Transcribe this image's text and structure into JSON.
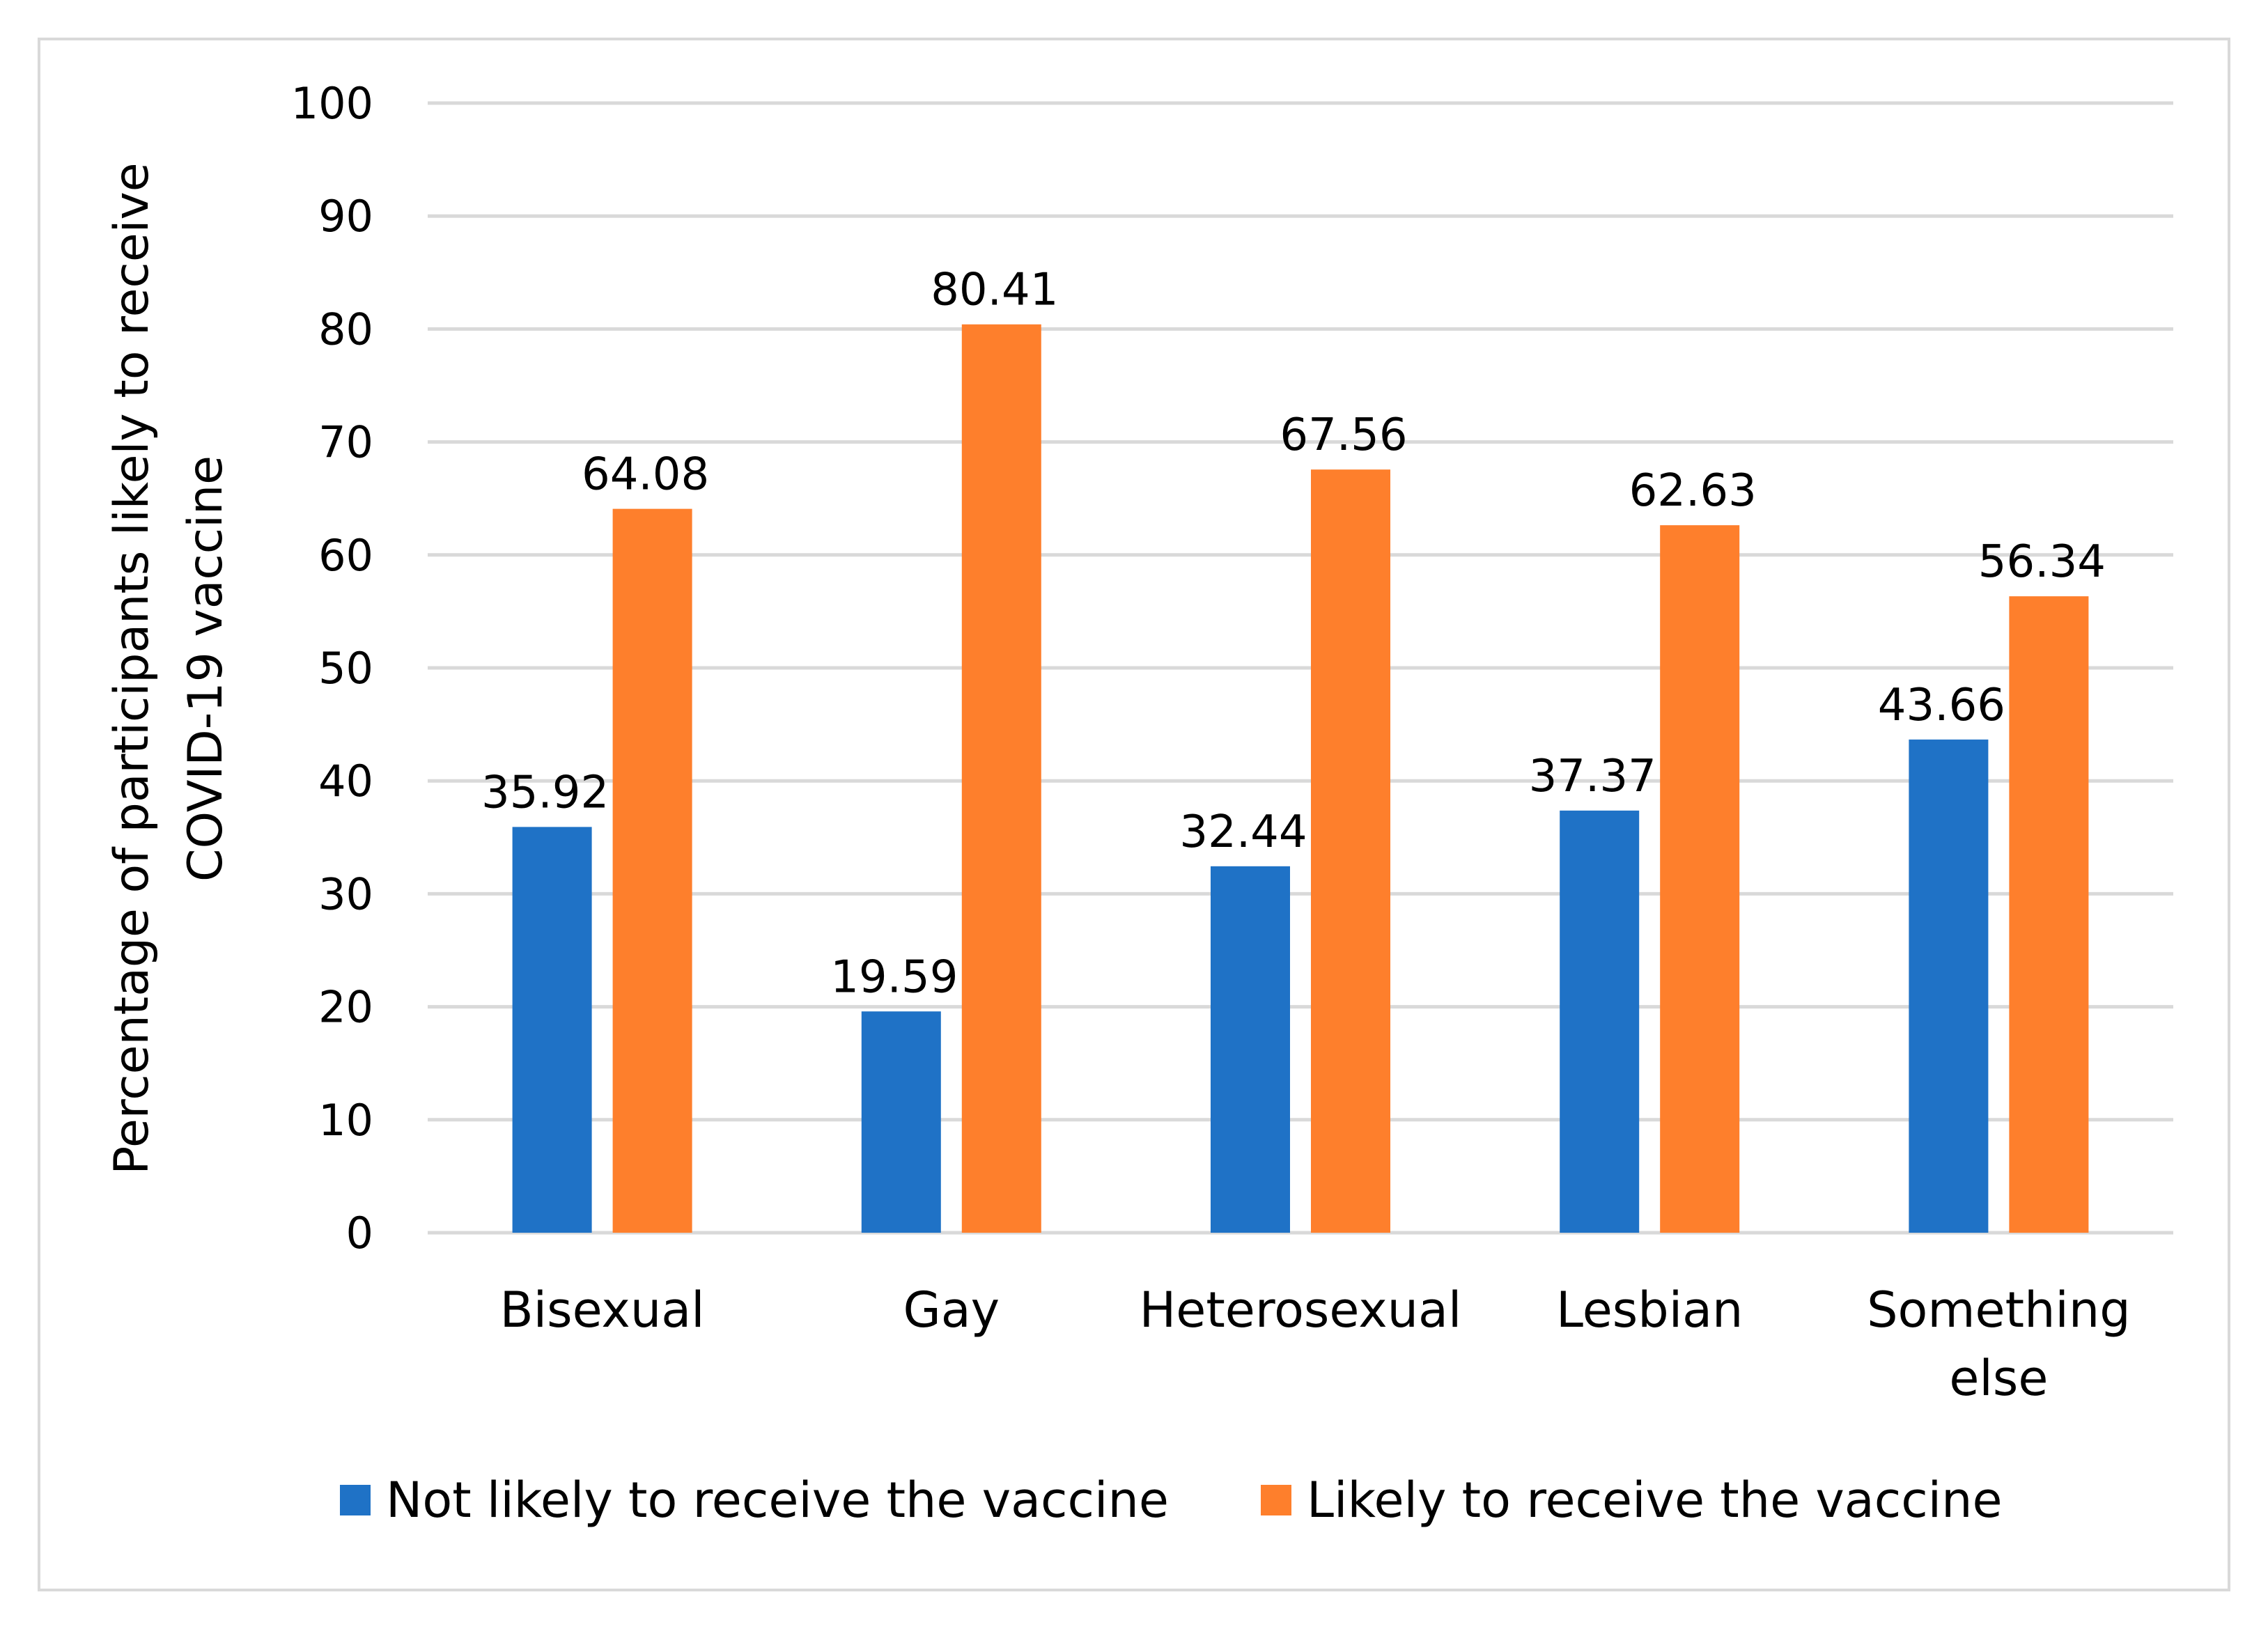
{
  "chart_data": {
    "type": "bar",
    "title": "",
    "xlabel": "",
    "ylabel": "Percentage of participants likely to receive COVID-19 vaccine",
    "ylabel_lines": [
      "Percentage of participants likely to receive",
      "COVID-19 vaccine"
    ],
    "ylim": [
      0,
      100
    ],
    "yticks": [
      0,
      10,
      20,
      30,
      40,
      50,
      60,
      70,
      80,
      90,
      100
    ],
    "grid": true,
    "legend_position": "bottom",
    "categories": [
      "Bisexual",
      "Gay",
      "Heterosexual",
      "Lesbian",
      "Something else"
    ],
    "category_lines": [
      [
        "Bisexual"
      ],
      [
        "Gay"
      ],
      [
        "Heterosexual"
      ],
      [
        "Lesbian"
      ],
      [
        "Something",
        "else"
      ]
    ],
    "series": [
      {
        "name": "Not likely to receive the vaccine",
        "color": "#1f72c6",
        "values": [
          35.92,
          19.59,
          32.44,
          37.37,
          43.66
        ],
        "labels": [
          "35.92",
          "19.59",
          "32.44",
          "37.37",
          "43.66"
        ]
      },
      {
        "name": "Likely to receive the vaccine",
        "color": "#fe7f2c",
        "values": [
          64.08,
          80.41,
          67.56,
          62.63,
          56.34
        ],
        "labels": [
          "64.08",
          "80.41",
          "67.56",
          "62.63",
          "56.34"
        ]
      }
    ]
  },
  "colors": {
    "grid": "#d9d9d9",
    "frame": "#d9d9d9",
    "text": "#000000"
  }
}
